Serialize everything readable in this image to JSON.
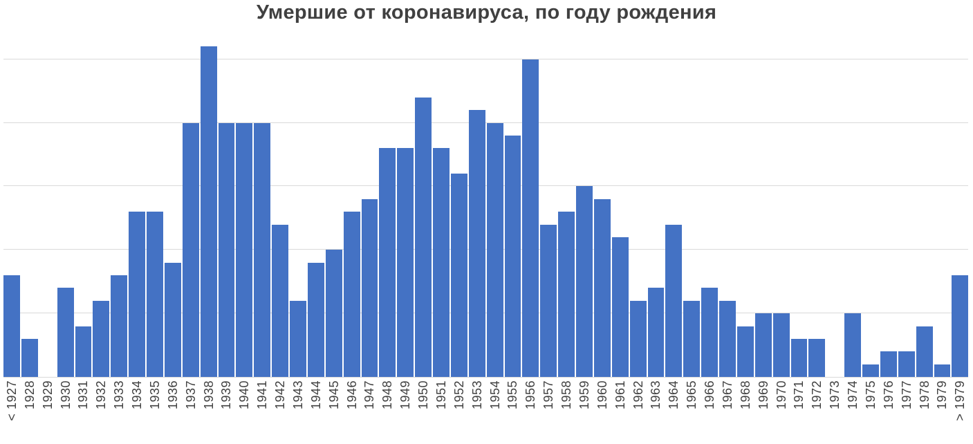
{
  "chart_data": {
    "type": "bar",
    "title": "Умершие от коронавируса, по году рождения",
    "xlabel": "",
    "ylabel": "",
    "categories": [
      "< 1927",
      "1928",
      "1929",
      "1930",
      "1931",
      "1932",
      "1933",
      "1934",
      "1935",
      "1936",
      "1937",
      "1938",
      "1939",
      "1940",
      "1941",
      "1942",
      "1943",
      "1944",
      "1945",
      "1946",
      "1947",
      "1948",
      "1949",
      "1950",
      "1951",
      "1952",
      "1953",
      "1954",
      "1955",
      "1956",
      "1957",
      "1958",
      "1959",
      "1960",
      "1961",
      "1962",
      "1963",
      "1964",
      "1965",
      "1966",
      "1967",
      "1968",
      "1969",
      "1970",
      "1971",
      "1972",
      "1973",
      "1974",
      "1975",
      "1976",
      "1977",
      "1978",
      "1979",
      "> 1979"
    ],
    "values": [
      8,
      3,
      0,
      7,
      4,
      6,
      8,
      13,
      13,
      9,
      20,
      26,
      20,
      20,
      20,
      12,
      6,
      9,
      10,
      13,
      14,
      18,
      18,
      22,
      18,
      16,
      21,
      20,
      19,
      25,
      12,
      13,
      15,
      14,
      11,
      6,
      7,
      12,
      6,
      7,
      6,
      4,
      5,
      5,
      3,
      3,
      0,
      5,
      1,
      2,
      2,
      4,
      1,
      8
    ],
    "ylim": [
      0,
      26.4
    ],
    "gridline_interval": 5,
    "grid": true,
    "legend": false,
    "y_tick_labels_visible": false,
    "colors": {
      "bar": "#4472C4",
      "title": "#404040",
      "label": "#404040",
      "gridline": "#D9D9D9",
      "axis_line": "#D9D9D9",
      "background": "#FFFFFF"
    }
  }
}
